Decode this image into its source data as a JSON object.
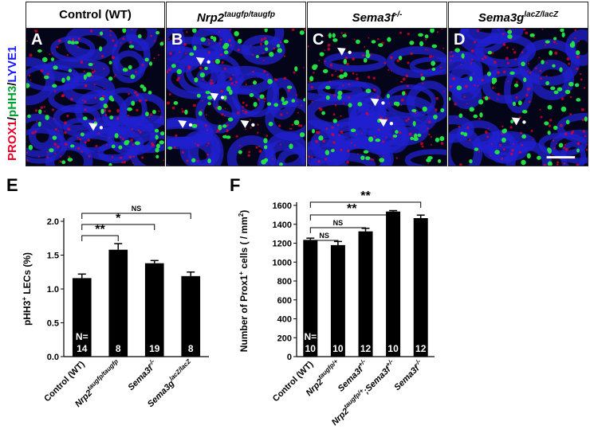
{
  "panels": [
    {
      "letter": "A",
      "title": "Control (WT)",
      "title_base": "",
      "title_sup": ""
    },
    {
      "letter": "B",
      "title": "",
      "title_base": "Nrp2",
      "title_sup": "taugfp/taugfp"
    },
    {
      "letter": "C",
      "title": "",
      "title_base": "Sema3f",
      "title_sup": "-/-"
    },
    {
      "letter": "D",
      "title": "",
      "title_base": "Sema3g",
      "title_sup": "lacZ/lacZ"
    }
  ],
  "stain_label": {
    "prox1": "PROX1",
    "slash1": "/",
    "phh3": "pHH3",
    "slash2": "/",
    "lyve1": "LYVE1"
  },
  "colors": {
    "prox1": "#e8002a",
    "phh3": "#00a030",
    "lyve1": "#1a1aff",
    "bar": "#000000",
    "tissue": "#2020d0",
    "nuclei": "#22e044"
  },
  "panel_E_letter": "E",
  "panel_F_letter": "F",
  "chart_data": [
    {
      "type": "bar",
      "panel": "E",
      "ylabel": "pHH3+ LECs (%)",
      "ylabel_base": "pHH3",
      "ylabel_sup": "+",
      "ylabel_rest": " LECs (%)",
      "ylim": [
        0.0,
        2.0
      ],
      "yticks": [
        "0.0",
        "0.5",
        "1.0",
        "1.5",
        "2.0"
      ],
      "categories": [
        {
          "base": "Control (WT)",
          "sup": ""
        },
        {
          "base": "Nrp2",
          "sup": "taugfp/taugfp"
        },
        {
          "base": "Sema3f",
          "sup": "-/-"
        },
        {
          "base": "Sema3g",
          "sup": "lacZ/lacZ"
        }
      ],
      "values": [
        1.16,
        1.58,
        1.38,
        1.19
      ],
      "errors": [
        0.06,
        0.09,
        0.04,
        0.06
      ],
      "n_prefix": "N=",
      "n_values": [
        "14",
        "8",
        "19",
        "8"
      ],
      "significance": [
        {
          "from": 0,
          "to": 1,
          "label": "**"
        },
        {
          "from": 0,
          "to": 2,
          "label": "*"
        },
        {
          "from": 0,
          "to": 3,
          "label": "NS"
        }
      ]
    },
    {
      "type": "bar",
      "panel": "F",
      "ylabel": "Number of Prox1+ cells ( / mm2)",
      "ylabel_base": "Number of Prox1",
      "ylabel_sup": "+",
      "ylabel_mid": " cells ( / mm",
      "ylabel_sup2": "2",
      "ylabel_end": ")",
      "ylim": [
        0,
        1600
      ],
      "yticks": [
        "0",
        "200",
        "400",
        "600",
        "800",
        "1000",
        "1200",
        "1400",
        "1600"
      ],
      "categories": [
        {
          "base": "Control (WT)",
          "sup": ""
        },
        {
          "base": "Nrp2",
          "sup": "taugfp/+"
        },
        {
          "base": "Sema3f",
          "sup": "+/-"
        },
        {
          "base": "Nrp2",
          "sup": "taugfp/+",
          "base2": ";Sema3f",
          "sup2": "+/-"
        },
        {
          "base": "Sema3f",
          "sup": "-/-"
        }
      ],
      "values": [
        1235,
        1180,
        1325,
        1535,
        1465
      ],
      "errors": [
        18,
        38,
        32,
        10,
        32
      ],
      "n_prefix": "N=",
      "n_values": [
        "10",
        "10",
        "12",
        "10",
        "12"
      ],
      "significance": [
        {
          "from": 0,
          "to": 1,
          "label": "NS"
        },
        {
          "from": 0,
          "to": 2,
          "label": "NS"
        },
        {
          "from": 0,
          "to": 3,
          "label": "**"
        },
        {
          "from": 0,
          "to": 4,
          "label": "**"
        }
      ]
    }
  ]
}
